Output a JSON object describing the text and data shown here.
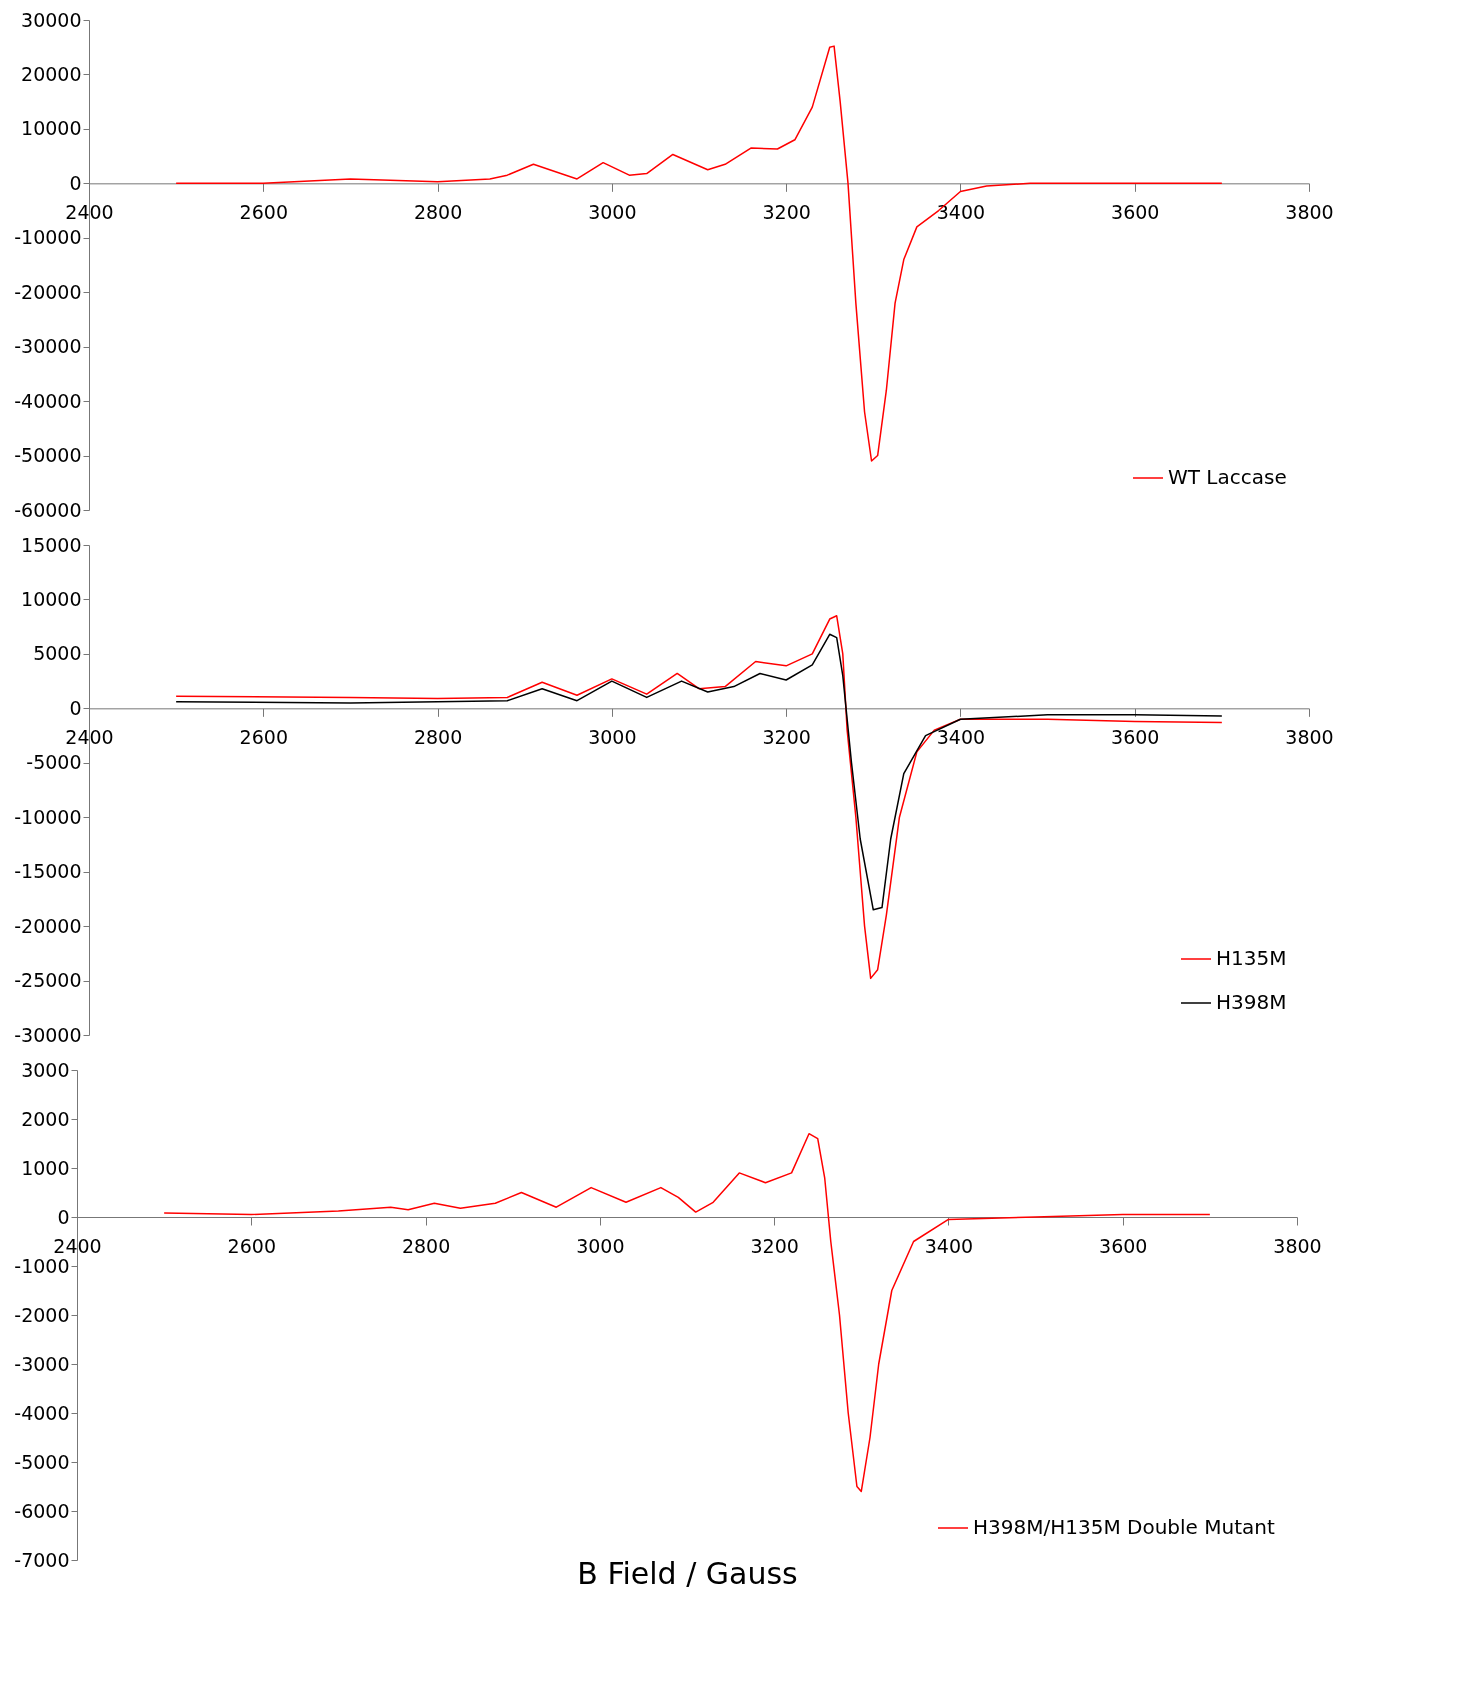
{
  "chart_data": [
    {
      "type": "line",
      "xlim": [
        2400,
        3800
      ],
      "xticks": [
        2400,
        2600,
        2800,
        3000,
        3200,
        3400,
        3600,
        3800
      ],
      "ylim": [
        -60000,
        30000
      ],
      "yticks": [
        -60000,
        -50000,
        -40000,
        -30000,
        -20000,
        -10000,
        0,
        10000,
        20000,
        30000
      ],
      "grid": false,
      "legend": "bottom right",
      "x": [
        2500,
        2600,
        2700,
        2800,
        2860,
        2880,
        2910,
        2960,
        2990,
        3020,
        3040,
        3070,
        3110,
        3130,
        3160,
        3190,
        3210,
        3230,
        3250,
        3255,
        3262,
        3271,
        3280,
        3290,
        3298,
        3305,
        3315,
        3325,
        3335,
        3350,
        3375,
        3400,
        3430,
        3480,
        3600,
        3700
      ],
      "series": [
        {
          "name": "WT Laccase",
          "color": "#ff0000",
          "values": [
            0,
            0,
            800,
            300,
            800,
            1500,
            3500,
            800,
            3800,
            1500,
            1800,
            5300,
            2500,
            3500,
            6500,
            6300,
            8000,
            14000,
            25000,
            25200,
            15000,
            0,
            -22000,
            -42000,
            -51000,
            -50000,
            -38000,
            -22000,
            -14000,
            -8000,
            -5000,
            -1500,
            -500,
            0,
            0,
            0
          ]
        }
      ]
    },
    {
      "type": "line",
      "xlim": [
        2400,
        3800
      ],
      "xticks": [
        2400,
        2600,
        2800,
        3000,
        3200,
        3400,
        3600,
        3800
      ],
      "ylim": [
        -30000,
        15000
      ],
      "yticks": [
        -30000,
        -25000,
        -20000,
        -15000,
        -10000,
        -5000,
        0,
        5000,
        10000,
        15000
      ],
      "grid": false,
      "legend": "bottom right",
      "series": [
        {
          "name": "H135M",
          "color": "#ff0000",
          "x": [
            2500,
            2700,
            2800,
            2880,
            2920,
            2960,
            3000,
            3040,
            3075,
            3100,
            3130,
            3165,
            3200,
            3230,
            3250,
            3258,
            3265,
            3270,
            3280,
            3290,
            3297,
            3305,
            3315,
            3330,
            3350,
            3370,
            3400,
            3500,
            3600,
            3700
          ],
          "values": [
            1100,
            1000,
            900,
            1000,
            2400,
            1200,
            2700,
            1300,
            3200,
            1800,
            2000,
            4300,
            3900,
            5000,
            8200,
            8500,
            5000,
            -2000,
            -10000,
            -20000,
            -24800,
            -24000,
            -19000,
            -10000,
            -4000,
            -2000,
            -1000,
            -1000,
            -1200,
            -1300
          ]
        },
        {
          "name": "H398M",
          "color": "#000000",
          "x": [
            2500,
            2700,
            2800,
            2880,
            2920,
            2960,
            3000,
            3040,
            3080,
            3110,
            3140,
            3170,
            3200,
            3230,
            3250,
            3258,
            3265,
            3275,
            3285,
            3300,
            3310,
            3320,
            3335,
            3360,
            3400,
            3500,
            3600,
            3700
          ],
          "values": [
            600,
            500,
            600,
            700,
            1800,
            700,
            2500,
            1000,
            2500,
            1500,
            2000,
            3200,
            2600,
            4000,
            6800,
            6500,
            3000,
            -5000,
            -12000,
            -18500,
            -18300,
            -12000,
            -6000,
            -2500,
            -1000,
            -600,
            -600,
            -700
          ]
        }
      ]
    },
    {
      "type": "line",
      "xlabel": "B Field / Gauss",
      "xlim": [
        2400,
        3800
      ],
      "xticks": [
        2400,
        2600,
        2800,
        3000,
        3200,
        3400,
        3600,
        3800
      ],
      "ylim": [
        -7000,
        3000
      ],
      "yticks": [
        -7000,
        -6000,
        -5000,
        -4000,
        -3000,
        -2000,
        -1000,
        0,
        1000,
        2000,
        3000
      ],
      "grid": false,
      "legend": "bottom right",
      "x": [
        2500,
        2600,
        2700,
        2760,
        2780,
        2810,
        2840,
        2880,
        2910,
        2950,
        2990,
        3030,
        3070,
        3090,
        3110,
        3130,
        3160,
        3190,
        3220,
        3240,
        3250,
        3258,
        3265,
        3275,
        3285,
        3295,
        3300,
        3310,
        3320,
        3335,
        3360,
        3400,
        3500,
        3600,
        3700
      ],
      "series": [
        {
          "name": "H398M/H135M Double Mutant",
          "color": "#ff0000",
          "values": [
            80,
            50,
            120,
            200,
            150,
            280,
            180,
            280,
            500,
            200,
            600,
            300,
            600,
            400,
            100,
            300,
            900,
            700,
            900,
            1700,
            1600,
            800,
            -500,
            -2000,
            -4000,
            -5500,
            -5600,
            -4500,
            -3000,
            -1500,
            -500,
            -50,
            0,
            50,
            50
          ]
        }
      ]
    }
  ]
}
